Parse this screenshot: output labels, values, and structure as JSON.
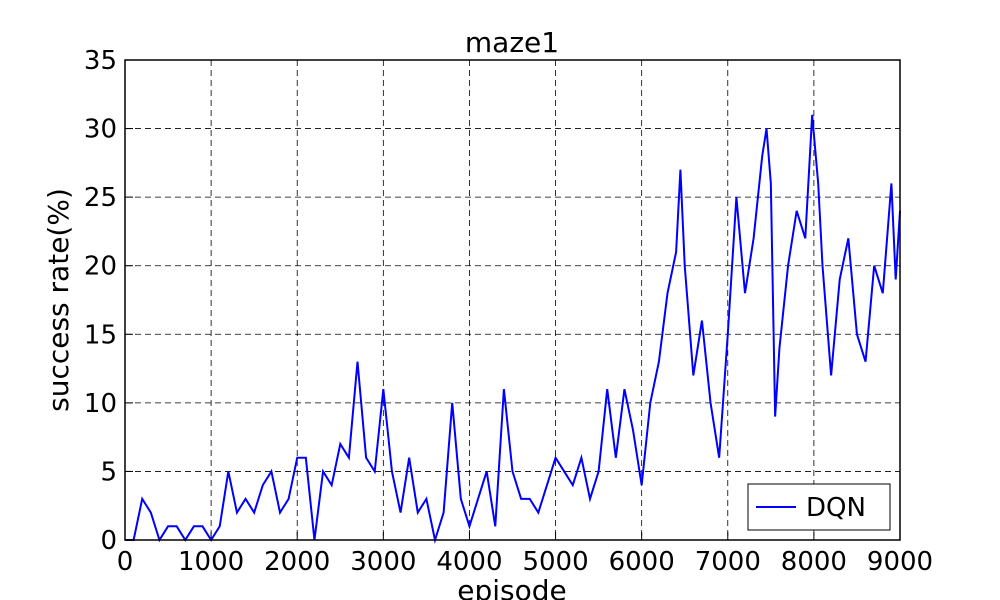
{
  "chart_data": {
    "type": "line",
    "title": "maze1",
    "xlabel": "episode",
    "ylabel": "success rate(%)",
    "x": [
      0,
      100,
      200,
      300,
      400,
      500,
      600,
      700,
      800,
      900,
      1000,
      1100,
      1200,
      1300,
      1400,
      1500,
      1600,
      1700,
      1800,
      1900,
      2000,
      2100,
      2200,
      2300,
      2400,
      2500,
      2600,
      2700,
      2800,
      2900,
      3000,
      3100,
      3200,
      3300,
      3400,
      3500,
      3600,
      3700,
      3800,
      3900,
      4000,
      4100,
      4200,
      4300,
      4400,
      4500,
      4600,
      4700,
      4800,
      4900,
      5000,
      5100,
      5200,
      5300,
      5400,
      5500,
      5600,
      5700,
      5800,
      5900,
      6000,
      6100,
      6200,
      6300,
      6400,
      6450,
      6500,
      6600,
      6700,
      6800,
      6900,
      7000,
      7100,
      7200,
      7300,
      7400,
      7450,
      7500,
      7550,
      7600,
      7700,
      7800,
      7900,
      7980,
      8050,
      8100,
      8200,
      8300,
      8400,
      8500,
      8600,
      8700,
      8800,
      8900,
      8950,
      9000
    ],
    "series": [
      {
        "name": "DQN",
        "color": "#0000ff",
        "values": [
          0,
          0,
          3,
          2,
          0,
          1,
          1,
          0,
          1,
          1,
          0,
          1,
          5,
          2,
          3,
          2,
          4,
          5,
          2,
          3,
          6,
          6,
          0,
          5,
          4,
          7,
          6,
          13,
          6,
          5,
          11,
          5,
          2,
          6,
          2,
          3,
          0,
          2,
          10,
          3,
          1,
          3,
          5,
          1,
          11,
          5,
          3,
          3,
          2,
          4,
          6,
          5,
          4,
          6,
          3,
          5,
          11,
          6,
          11,
          8,
          4,
          10,
          13,
          18,
          21,
          27,
          20,
          12,
          16,
          10,
          6,
          15,
          25,
          18,
          22,
          28,
          30,
          26,
          9,
          14,
          20,
          24,
          22,
          31,
          26,
          20,
          12,
          19,
          22,
          15,
          13,
          20,
          18,
          26,
          19,
          24
        ]
      }
    ],
    "xlim": [
      0,
      9000
    ],
    "ylim": [
      0,
      35
    ],
    "xticks": [
      0,
      1000,
      2000,
      3000,
      4000,
      5000,
      6000,
      7000,
      8000,
      9000
    ],
    "yticks": [
      0,
      5,
      10,
      15,
      20,
      25,
      30,
      35
    ],
    "grid": true,
    "legend": "lower right"
  }
}
